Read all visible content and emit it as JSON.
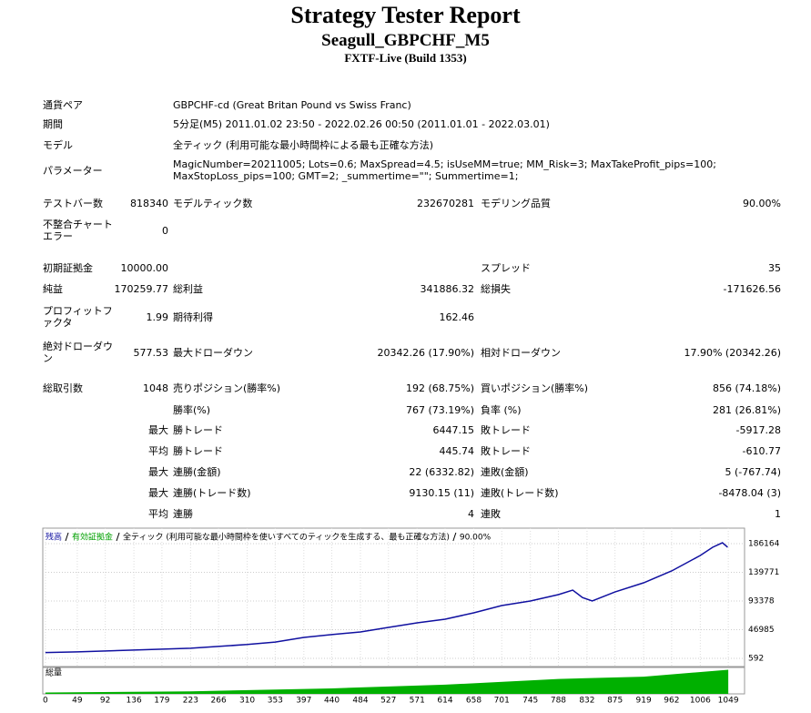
{
  "header": {
    "title": "Strategy Tester Report",
    "subtitle": "Seagull_GBPCHF_M5",
    "build": "FXTF-Live (Build 1353)"
  },
  "table": {
    "rows": [
      [
        "通貨ペア",
        "GBPCHF-cd (Great Britan Pound vs Swiss Franc)"
      ],
      [
        "期間",
        "5分足(M5) 2011.01.02 23:50 - 2022.02.26 00:50 (2011.01.01 - 2022.03.01)"
      ],
      [
        "モデル",
        "全ティック (利用可能な最小時間枠による最も正確な方法)"
      ],
      [
        "パラメーター",
        "MagicNumber=20211005; Lots=0.6; MaxSpread=4.5; isUseMM=true; MM_Risk=3; MaxTakeProfit_pips=100; MaxStopLoss_pips=100; GMT=2; _summertime=\"\"; Summertime=1;"
      ],
      [
        "テストバー数",
        "818340",
        "モデルティック数",
        "232670281",
        "モデリング品質",
        "90.00%"
      ],
      [
        "不整合チャートエラー",
        "0",
        null,
        null,
        null,
        null
      ],
      [
        "初期証拠金",
        "10000.00",
        null,
        null,
        "スプレッド",
        "35"
      ],
      [
        "純益",
        "170259.77",
        "総利益",
        "341886.32",
        "総損失",
        "-171626.56"
      ],
      [
        "プロフィットファクタ",
        "1.99",
        "期待利得",
        "162.46",
        null,
        null
      ],
      [
        "絶対ドローダウン",
        "577.53",
        "最大ドローダウン",
        "20342.26 (17.90%)",
        "相対ドローダウン",
        "17.90% (20342.26)"
      ],
      [
        "総取引数",
        "1048",
        "売りポジション(勝率%)",
        "192 (68.75%)",
        "買いポジション(勝率%)",
        "856 (74.18%)"
      ],
      [
        null,
        null,
        "勝率(%)",
        "767 (73.19%)",
        "負率 (%)",
        "281 (26.81%)"
      ],
      [
        null,
        "最大",
        "勝トレード",
        "6447.15",
        "敗トレード",
        "-5917.28"
      ],
      [
        null,
        "平均",
        "勝トレード",
        "445.74",
        "敗トレード",
        "-610.77"
      ],
      [
        null,
        "最大",
        "連勝(金額)",
        "22 (6332.82)",
        "連敗(金額)",
        "5 (-767.74)"
      ],
      [
        null,
        "最大",
        "連勝(トレード数)",
        "9130.15 (11)",
        "連敗(トレード数)",
        "-8478.04 (3)"
      ],
      [
        null,
        "平均",
        "連勝",
        "4",
        "連敗",
        "1"
      ]
    ]
  },
  "chart_data": [
    {
      "type": "line",
      "legend": [
        "残高",
        "有効証拠金",
        "全ティック (利用可能な最小時間枠を使いすべてのティックを生成する、最も正確な方法)",
        "90.00%"
      ],
      "legend_colors": [
        "#1010a0",
        "#00a000",
        "#000000",
        "#000000"
      ],
      "x": [
        0,
        49,
        136,
        223,
        310,
        353,
        397,
        440,
        484,
        527,
        571,
        614,
        658,
        701,
        745,
        788,
        810,
        825,
        840,
        875,
        919,
        962,
        1006,
        1025,
        1040,
        1048
      ],
      "series": [
        {
          "name": "残高",
          "color": "#1010a0",
          "values": [
            10000,
            11000,
            14000,
            17000,
            23000,
            27000,
            34500,
            39000,
            43300,
            50700,
            58000,
            64000,
            74200,
            86000,
            93400,
            103700,
            111000,
            99000,
            93400,
            108000,
            122800,
            142000,
            167000,
            180300,
            187600,
            180300
          ]
        }
      ],
      "xlim": [
        -4,
        1074
      ],
      "ylim": [
        -12660,
        211200
      ],
      "xticks": [
        0,
        49,
        92,
        136,
        179,
        223,
        266,
        310,
        353,
        397,
        440,
        484,
        527,
        571,
        614,
        658,
        701,
        745,
        788,
        832,
        875,
        919,
        962,
        1006,
        1049
      ],
      "yticks": [
        592,
        46985,
        93378,
        139771,
        186164
      ],
      "grid": true
    },
    {
      "type": "area",
      "title": "総量",
      "x": [
        0,
        223,
        440,
        614,
        788,
        919,
        1049
      ],
      "values": [
        0.6,
        1.1,
        2.4,
        4.0,
        6.5,
        7.5,
        10.5
      ],
      "color": "#00b000",
      "ylim": [
        0,
        11.5
      ]
    }
  ]
}
